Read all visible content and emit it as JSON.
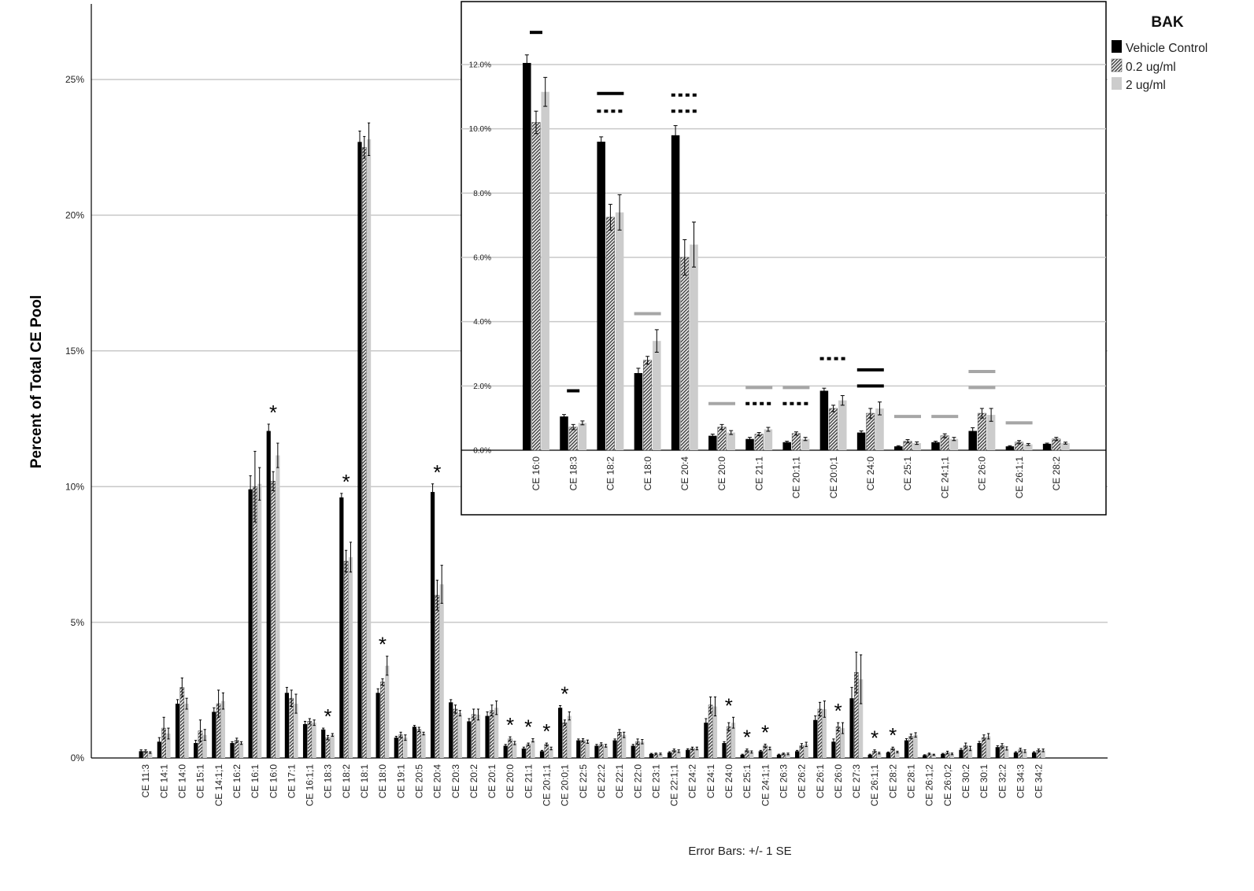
{
  "chart_data": [
    {
      "type": "bar",
      "ylabel": "Percent of Total CE Pool",
      "footnote": "Error Bars: +/- 1 SE",
      "ylim": [
        0,
        27.5
      ],
      "yticks": [
        "0%",
        "5%",
        "10%",
        "15%",
        "20%",
        "25%"
      ],
      "ytick_values": [
        0,
        5,
        10,
        15,
        20,
        25
      ],
      "grid": true,
      "categories": [
        "CE 11:3",
        "CE 14:1",
        "CE 14:0",
        "CE 15:1",
        "CE 14:1;1",
        "CE 16:2",
        "CE 16:1",
        "CE 16:0",
        "CE 17:1",
        "CE 16:1;1",
        "CE 18:3",
        "CE 18:2",
        "CE 18:1",
        "CE 18:0",
        "CE 19:1",
        "CE 20:5",
        "CE 20:4",
        "CE 20:3",
        "CE 20:2",
        "CE 20:1",
        "CE 20:0",
        "CE 21:1",
        "CE 20:1;1",
        "CE 20:0;1",
        "CE 22:5",
        "CE 22:2",
        "CE 22:1",
        "CE 22:0",
        "CE 23:1",
        "CE 22:1;1",
        "CE 24:2",
        "CE 24:1",
        "CE 24:0",
        "CE 25:1",
        "CE 24:1;1",
        "CE 26:3",
        "CE 26:2",
        "CE 26:1",
        "CE 26:0",
        "CE 27:3",
        "CE 26:1;1",
        "CE 28:2",
        "CE 28:1",
        "CE 26:1;2",
        "CE 26:0;2",
        "CE 30:2",
        "CE 30:1",
        "CE 32:2",
        "CE 34:3",
        "CE 34:2"
      ],
      "series": [
        {
          "name": "Vehicle Control",
          "values": [
            0.25,
            0.6,
            2.0,
            0.55,
            1.7,
            0.55,
            9.9,
            12.05,
            2.4,
            1.25,
            1.05,
            9.6,
            22.7,
            2.4,
            0.75,
            1.15,
            9.8,
            2.05,
            1.35,
            1.55,
            0.45,
            0.35,
            0.25,
            1.85,
            0.65,
            0.45,
            0.65,
            0.45,
            0.15,
            0.2,
            0.3,
            1.3,
            0.55,
            0.12,
            0.25,
            0.12,
            0.25,
            1.4,
            0.6,
            2.2,
            0.12,
            0.2,
            0.65,
            0.1,
            0.15,
            0.3,
            0.55,
            0.4,
            0.2,
            0.2
          ],
          "errors": [
            0.05,
            0.15,
            0.15,
            0.1,
            0.15,
            0.05,
            0.5,
            0.25,
            0.2,
            0.1,
            0.05,
            0.15,
            0.4,
            0.15,
            0.05,
            0.05,
            0.3,
            0.1,
            0.1,
            0.15,
            0.05,
            0.05,
            0.03,
            0.08,
            0.05,
            0.05,
            0.05,
            0.05,
            0.02,
            0.03,
            0.04,
            0.15,
            0.05,
            0.02,
            0.03,
            0.02,
            0.03,
            0.15,
            0.1,
            0.4,
            0.02,
            0.02,
            0.06,
            0.02,
            0.02,
            0.05,
            0.06,
            0.05,
            0.03,
            0.03
          ]
        },
        {
          "name": "0.2 ug/ml",
          "values": [
            0.25,
            1.1,
            2.6,
            1.0,
            2.0,
            0.65,
            10.0,
            10.2,
            2.2,
            1.35,
            0.75,
            7.25,
            22.5,
            2.8,
            0.85,
            1.05,
            6.0,
            1.8,
            1.6,
            1.75,
            0.7,
            0.5,
            0.5,
            1.3,
            0.65,
            0.5,
            0.95,
            0.6,
            0.15,
            0.28,
            0.35,
            1.95,
            1.15,
            0.28,
            0.45,
            0.15,
            0.45,
            1.8,
            1.15,
            3.15,
            0.25,
            0.35,
            0.8,
            0.15,
            0.2,
            0.45,
            0.75,
            0.45,
            0.3,
            0.28
          ],
          "errors": [
            0.05,
            0.4,
            0.35,
            0.4,
            0.5,
            0.08,
            1.3,
            0.35,
            0.3,
            0.1,
            0.08,
            0.4,
            0.4,
            0.12,
            0.1,
            0.08,
            0.55,
            0.15,
            0.2,
            0.2,
            0.08,
            0.05,
            0.05,
            0.1,
            0.06,
            0.06,
            0.1,
            0.1,
            0.03,
            0.05,
            0.05,
            0.3,
            0.15,
            0.05,
            0.06,
            0.03,
            0.08,
            0.25,
            0.15,
            0.75,
            0.05,
            0.05,
            0.08,
            0.03,
            0.05,
            0.1,
            0.1,
            0.08,
            0.06,
            0.05
          ]
        },
        {
          "name": "2 ug/ml",
          "values": [
            0.2,
            0.9,
            2.0,
            0.85,
            2.1,
            0.55,
            10.1,
            11.15,
            2.0,
            1.3,
            0.85,
            7.4,
            22.8,
            3.4,
            0.75,
            0.9,
            6.4,
            1.65,
            1.6,
            1.85,
            0.55,
            0.65,
            0.35,
            1.55,
            0.6,
            0.45,
            0.85,
            0.6,
            0.15,
            0.25,
            0.35,
            1.9,
            1.3,
            0.22,
            0.35,
            0.15,
            0.5,
            1.8,
            1.1,
            2.9,
            0.18,
            0.22,
            0.85,
            0.12,
            0.15,
            0.35,
            0.8,
            0.35,
            0.25,
            0.28
          ],
          "errors": [
            0.03,
            0.2,
            0.2,
            0.2,
            0.3,
            0.05,
            0.6,
            0.45,
            0.35,
            0.1,
            0.05,
            0.55,
            0.6,
            0.35,
            0.1,
            0.05,
            0.7,
            0.1,
            0.2,
            0.25,
            0.06,
            0.06,
            0.05,
            0.15,
            0.06,
            0.05,
            0.1,
            0.08,
            0.03,
            0.05,
            0.05,
            0.35,
            0.2,
            0.04,
            0.05,
            0.03,
            0.08,
            0.3,
            0.2,
            0.9,
            0.03,
            0.03,
            0.08,
            0.02,
            0.03,
            0.08,
            0.1,
            0.06,
            0.05,
            0.05
          ]
        }
      ],
      "annotations": [
        {
          "category": "CE 16:0",
          "text": "*"
        },
        {
          "category": "CE 18:3",
          "text": "*"
        },
        {
          "category": "CE 18:2",
          "text": "*"
        },
        {
          "category": "CE 18:0",
          "text": "*"
        },
        {
          "category": "CE 20:4",
          "text": "*"
        },
        {
          "category": "CE 20:0",
          "text": "*"
        },
        {
          "category": "CE 21:1",
          "text": "*"
        },
        {
          "category": "CE 20:1;1",
          "text": "*"
        },
        {
          "category": "CE 20:0;1",
          "text": "*"
        },
        {
          "category": "CE 24:0",
          "text": "*"
        },
        {
          "category": "CE 25:1",
          "text": "*"
        },
        {
          "category": "CE 24:1;1",
          "text": "*"
        },
        {
          "category": "CE 26:0",
          "text": "*"
        },
        {
          "category": "CE 26:1;1",
          "text": "*"
        },
        {
          "category": "CE 28:2",
          "text": "*"
        }
      ]
    },
    {
      "type": "bar",
      "ylim": [
        0,
        13.5
      ],
      "yticks": [
        "0.0%",
        "2.0%",
        "4.0%",
        "6.0%",
        "8.0%",
        "10.0%",
        "12.0%"
      ],
      "ytick_values": [
        0,
        2,
        4,
        6,
        8,
        10,
        12
      ],
      "grid": true,
      "legend_title": "BAK",
      "legend_position": "top-right",
      "categories": [
        "CE 16:0",
        "CE 18:3",
        "CE 18:2",
        "CE 18:0",
        "CE 20:4",
        "CE 20:0",
        "CE 21:1",
        "CE 20:1;1",
        "CE 20:0;1",
        "CE 24:0",
        "CE 25:1",
        "CE 24:1;1",
        "CE 26:0",
        "CE 26:1;1",
        "CE 28:2"
      ],
      "series": [
        {
          "name": "Vehicle Control",
          "values": [
            12.05,
            1.05,
            9.6,
            2.4,
            9.8,
            0.45,
            0.35,
            0.25,
            1.85,
            0.55,
            0.12,
            0.25,
            0.6,
            0.12,
            0.2
          ],
          "errors": [
            0.25,
            0.06,
            0.15,
            0.15,
            0.3,
            0.05,
            0.05,
            0.03,
            0.08,
            0.05,
            0.02,
            0.03,
            0.1,
            0.02,
            0.02
          ]
        },
        {
          "name": "0.2 ug/ml",
          "values": [
            10.2,
            0.72,
            7.25,
            2.8,
            6.0,
            0.72,
            0.5,
            0.52,
            1.3,
            1.15,
            0.28,
            0.45,
            1.15,
            0.25,
            0.35
          ],
          "errors": [
            0.35,
            0.08,
            0.4,
            0.12,
            0.55,
            0.08,
            0.05,
            0.05,
            0.1,
            0.15,
            0.05,
            0.06,
            0.15,
            0.05,
            0.05
          ]
        },
        {
          "name": "2 ug/ml",
          "values": [
            11.15,
            0.85,
            7.4,
            3.4,
            6.4,
            0.55,
            0.65,
            0.35,
            1.55,
            1.3,
            0.22,
            0.35,
            1.1,
            0.18,
            0.22
          ],
          "errors": [
            0.45,
            0.06,
            0.55,
            0.35,
            0.7,
            0.06,
            0.06,
            0.05,
            0.15,
            0.2,
            0.04,
            0.05,
            0.2,
            0.03,
            0.03
          ]
        }
      ],
      "significance_marks": [
        {
          "category": "CE 16:0",
          "y": 13.0,
          "style": "solid-black"
        },
        {
          "category": "CE 18:3",
          "y": 1.85,
          "style": "solid-black"
        },
        {
          "category": "CE 18:2",
          "y": 11.1,
          "style": "solid-black"
        },
        {
          "category": "CE 18:2",
          "y": 10.55,
          "style": "dotted-black"
        },
        {
          "category": "CE 18:0",
          "y": 4.25,
          "style": "solid-gray"
        },
        {
          "category": "CE 20:4",
          "y": 11.05,
          "style": "dotted-black"
        },
        {
          "category": "CE 20:4",
          "y": 10.55,
          "style": "dotted-black"
        },
        {
          "category": "CE 20:0",
          "y": 1.45,
          "style": "solid-gray"
        },
        {
          "category": "CE 21:1",
          "y": 1.95,
          "style": "solid-gray"
        },
        {
          "category": "CE 21:1",
          "y": 1.45,
          "style": "dotted-black"
        },
        {
          "category": "CE 20:1;1",
          "y": 1.95,
          "style": "solid-gray"
        },
        {
          "category": "CE 20:1;1",
          "y": 1.45,
          "style": "dotted-black"
        },
        {
          "category": "CE 20:0;1",
          "y": 2.85,
          "style": "dotted-black"
        },
        {
          "category": "CE 24:0",
          "y": 2.5,
          "style": "solid-black"
        },
        {
          "category": "CE 24:0",
          "y": 2.0,
          "style": "solid-black"
        },
        {
          "category": "CE 25:1",
          "y": 1.05,
          "style": "solid-gray"
        },
        {
          "category": "CE 24:1;1",
          "y": 1.05,
          "style": "solid-gray"
        },
        {
          "category": "CE 26:0",
          "y": 2.45,
          "style": "solid-gray"
        },
        {
          "category": "CE 26:0",
          "y": 1.95,
          "style": "solid-gray"
        },
        {
          "category": "CE 26:1;1",
          "y": 0.85,
          "style": "solid-gray"
        }
      ]
    }
  ],
  "colors": {
    "vehicle": "#000000",
    "low_dose_hatch": "#4a4a4a",
    "high_dose": "#cccccc",
    "grid": "#c8c8c8",
    "mark_gray": "#a6a6a6"
  }
}
